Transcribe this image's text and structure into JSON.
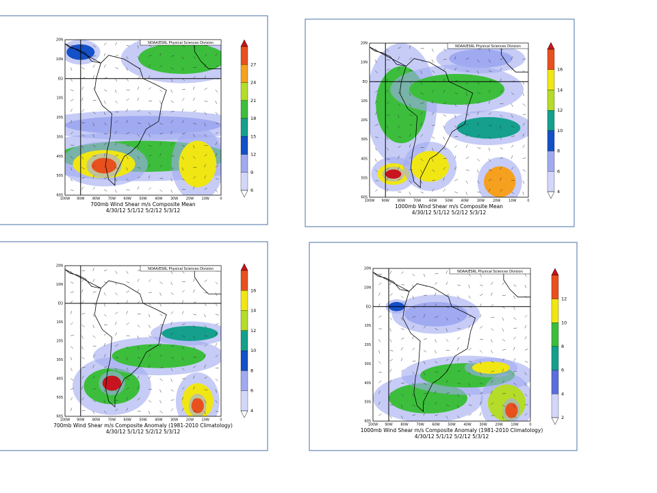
{
  "credit": "NOAA/ESRL Physical Sciences Division",
  "lat_labels": [
    "20N",
    "10N",
    "EQ",
    "10S",
    "20S",
    "30S",
    "40S",
    "50S",
    "60S"
  ],
  "lon_labels": [
    "100W",
    "90W",
    "80W",
    "70W",
    "60W",
    "50W",
    "40W",
    "30W",
    "20W",
    "10W",
    "0"
  ],
  "panels": [
    {
      "title": "700mb Wind Shear m/s Composite Mean",
      "dates": "4/30/12 5/1/12 5/2/12 5/3/12",
      "colorbar": [
        "27",
        "24",
        "21",
        "18",
        "15",
        "12",
        "9",
        "6"
      ]
    },
    {
      "title": "1000mb Wind Shear m/s Composite Mean",
      "dates": "4/30/12 5/1/12 5/2/12 5/3/12",
      "colorbar": [
        "16",
        "14",
        "12",
        "10",
        "8",
        "6",
        "4"
      ]
    },
    {
      "title": "700mb Wind Shear m/s Composite Anomaly (1981-2010 Climatology)",
      "dates": "4/30/12 5/1/12 5/2/12 5/3/12",
      "colorbar": [
        "16",
        "14",
        "12",
        "10",
        "8",
        "6",
        "4"
      ]
    },
    {
      "title": "1000mb Wind Shear m/s Composite Anomaly (1981-2010 Climatology)",
      "dates": "4/30/12 5/1/12 5/2/12 5/3/12",
      "colorbar": [
        "12",
        "10",
        "8",
        "6",
        "4",
        "2"
      ]
    }
  ]
}
